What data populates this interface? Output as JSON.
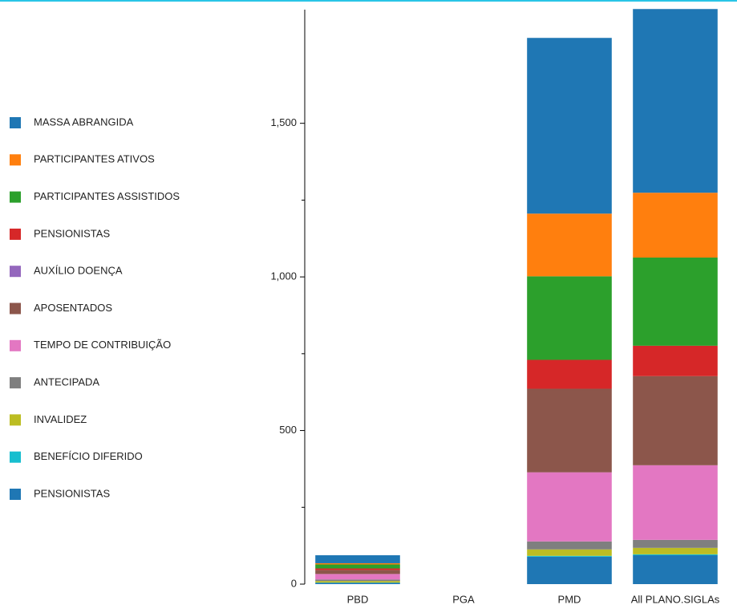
{
  "chart_data": {
    "type": "stacked_bar",
    "categories": [
      "PBD",
      "PGA",
      "PMD",
      "All PLANO.SIGLAs"
    ],
    "series": [
      {
        "name": "MASSA ABRANGIDA",
        "color": "#1f77b4",
        "values": [
          26,
          0,
          572,
          598
        ]
      },
      {
        "name": "PARTICIPANTES ATIVOS",
        "color": "#ff7f0e",
        "values": [
          4,
          0,
          204,
          211
        ]
      },
      {
        "name": "PARTICIPANTES ASSISTIDOS",
        "color": "#2ca02c",
        "values": [
          13,
          0,
          272,
          287
        ]
      },
      {
        "name": "PENSIONISTAS",
        "color": "#d62728",
        "values": [
          5,
          0,
          94,
          99
        ]
      },
      {
        "name": "AUXÍLIO DOENÇA",
        "color": "#9467bd",
        "values": [
          0,
          0,
          0,
          0
        ]
      },
      {
        "name": "APOSENTADOS",
        "color": "#8c564b",
        "values": [
          13,
          0,
          272,
          290
        ]
      },
      {
        "name": "TEMPO DE CONTRIBUIÇÃO",
        "color": "#e377c2",
        "values": [
          18,
          0,
          225,
          243
        ]
      },
      {
        "name": "ANTECIPADA",
        "color": "#7f7f7f",
        "values": [
          5,
          0,
          26,
          26
        ]
      },
      {
        "name": "INVALIDEZ",
        "color": "#bcbd22",
        "values": [
          5,
          0,
          21,
          21
        ]
      },
      {
        "name": "BENEFÍCIO DIFERIDO",
        "color": "#17becf",
        "values": [
          1,
          0,
          3,
          3
        ]
      },
      {
        "name": "PENSIONISTAS",
        "color": "#1f77b4",
        "values": [
          4,
          0,
          89,
          94
        ]
      }
    ],
    "ylim": [
      0,
      1870
    ],
    "yticks": [
      0,
      500,
      {
        "value": 1000,
        "label": "1,000"
      },
      {
        "value": 1500,
        "label": "1,500"
      }
    ],
    "minor_yticks": [
      250,
      750,
      1250
    ]
  }
}
